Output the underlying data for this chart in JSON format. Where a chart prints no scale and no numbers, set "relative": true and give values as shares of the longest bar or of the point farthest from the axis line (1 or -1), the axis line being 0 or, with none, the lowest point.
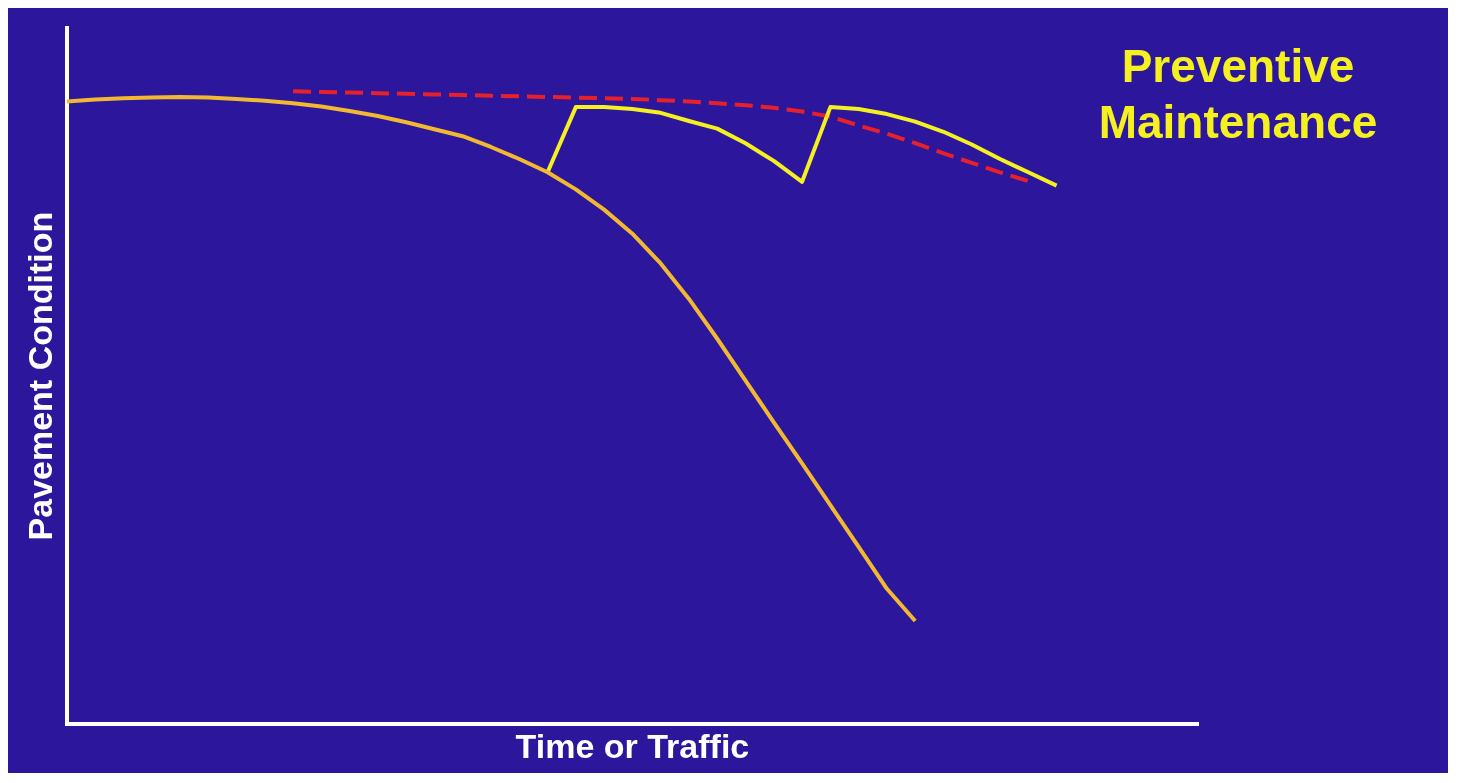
{
  "chart_data": {
    "type": "line",
    "title": "Preventive Maintenance",
    "xlabel": "Time or Traffic",
    "ylabel": "Pavement Condition",
    "relative": true,
    "grid": false,
    "legend": false,
    "marker": "none",
    "categories": [
      null,
      null,
      null,
      null,
      null,
      null,
      null,
      null,
      null,
      null,
      null,
      null,
      null,
      null,
      null,
      null,
      null,
      null,
      null,
      null,
      null,
      null,
      null,
      null,
      null,
      null,
      null,
      null,
      null,
      null,
      null,
      null,
      null,
      null,
      null,
      null,
      null,
      null,
      null,
      null,
      null
    ],
    "series": [
      {
        "color": "#f2b830",
        "line_style": "solid",
        "values": [
          0.984,
          0.987,
          0.989,
          0.99,
          0.991,
          0.99,
          0.988,
          0.985,
          0.981,
          0.976,
          0.969,
          0.961,
          0.951,
          0.94,
          0.929,
          0.912,
          0.893,
          0.872,
          0.845,
          0.813,
          0.775,
          0.728,
          0.672,
          0.609,
          0.543,
          0.477,
          0.412,
          0.346,
          0.28,
          0.214,
          0.163,
          null,
          null,
          null,
          null,
          null,
          null,
          null,
          null,
          null,
          null
        ]
      },
      {
        "color": "#f5f020",
        "line_style": "solid",
        "values": [
          null,
          null,
          null,
          null,
          null,
          null,
          null,
          null,
          null,
          null,
          null,
          null,
          null,
          null,
          null,
          null,
          null,
          0.872,
          0.975,
          0.975,
          0.972,
          0.966,
          0.953,
          0.941,
          0.918,
          0.89,
          0.857,
          0.975,
          0.972,
          0.964,
          0.952,
          0.936,
          0.916,
          0.893,
          0.872,
          0.851,
          null,
          null,
          null,
          null,
          null
        ]
      },
      {
        "color": "#e8202a",
        "line_style": "dashed",
        "values": [
          null,
          null,
          null,
          null,
          null,
          null,
          null,
          null,
          1.0,
          0.999,
          0.998,
          0.997,
          0.996,
          0.995,
          0.994,
          0.993,
          0.992,
          0.991,
          0.99,
          0.989,
          0.988,
          0.986,
          0.984,
          0.981,
          0.978,
          0.974,
          0.968,
          0.96,
          0.946,
          0.933,
          0.918,
          0.902,
          0.887,
          0.872,
          0.858,
          null,
          null,
          null,
          null,
          null,
          null
        ]
      }
    ]
  }
}
